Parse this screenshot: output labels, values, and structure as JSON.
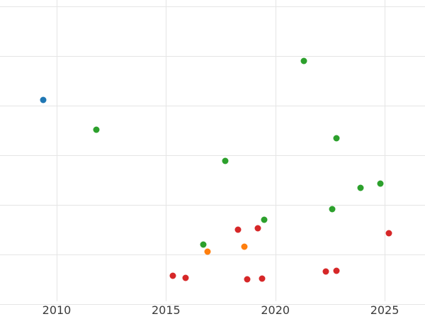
{
  "chart_data": {
    "type": "scatter",
    "title": "",
    "xlabel": "",
    "ylabel": "",
    "grid": true,
    "legend": "none",
    "x_ticks": [
      2010,
      2015,
      2020,
      2025
    ],
    "x_tick_labels": [
      "2010",
      "2015",
      "2020",
      "2025"
    ],
    "x_range": [
      2007.4,
      2026.8
    ],
    "y_range": [
      0,
      6
    ],
    "y_gridline_units": [
      0,
      1,
      2,
      3,
      4,
      5,
      6
    ],
    "note": "y-axis tick labels not visible in image; y values are in estimated gridline units",
    "series": [
      {
        "name": "series-blue",
        "color": "#1f77b4",
        "points": [
          {
            "x": 2009.4,
            "y": 4.11
          }
        ]
      },
      {
        "name": "series-green",
        "color": "#2ca02c",
        "points": [
          {
            "x": 2011.8,
            "y": 3.51
          },
          {
            "x": 2016.7,
            "y": 1.2
          },
          {
            "x": 2017.7,
            "y": 2.89
          },
          {
            "x": 2019.5,
            "y": 1.7
          },
          {
            "x": 2021.3,
            "y": 4.9
          },
          {
            "x": 2022.6,
            "y": 1.91
          },
          {
            "x": 2022.8,
            "y": 3.34
          },
          {
            "x": 2023.9,
            "y": 2.34
          },
          {
            "x": 2024.8,
            "y": 2.43
          }
        ]
      },
      {
        "name": "series-orange",
        "color": "#ff7f0e",
        "points": [
          {
            "x": 2016.9,
            "y": 1.06
          },
          {
            "x": 2018.6,
            "y": 1.16
          }
        ]
      },
      {
        "name": "series-red",
        "color": "#d62728",
        "points": [
          {
            "x": 2015.3,
            "y": 0.57
          },
          {
            "x": 2015.9,
            "y": 0.53
          },
          {
            "x": 2018.3,
            "y": 1.5
          },
          {
            "x": 2018.7,
            "y": 0.5
          },
          {
            "x": 2019.2,
            "y": 1.53
          },
          {
            "x": 2019.4,
            "y": 0.51
          },
          {
            "x": 2022.3,
            "y": 0.66
          },
          {
            "x": 2022.8,
            "y": 0.67
          },
          {
            "x": 2025.2,
            "y": 1.43
          }
        ]
      }
    ]
  }
}
